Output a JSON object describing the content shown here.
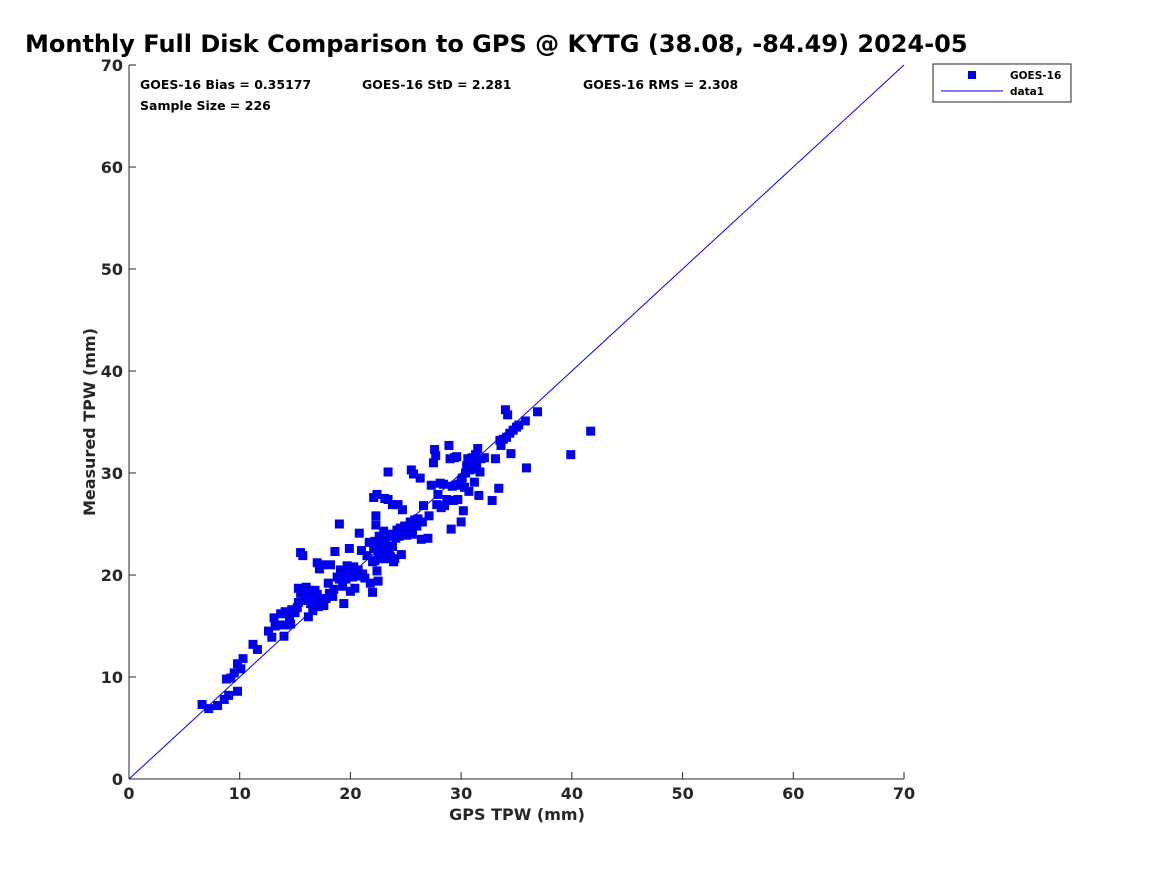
{
  "chart_data": {
    "type": "scatter",
    "title": "Monthly Full Disk Comparison to GPS @ KYTG (38.08, -84.49) 2024-05",
    "xlabel": "GPS TPW (mm)",
    "ylabel": "Measured TPW (mm)",
    "xlim": [
      0,
      70
    ],
    "ylim": [
      0,
      70
    ],
    "xticks": [
      0,
      10,
      20,
      30,
      40,
      50,
      60,
      70
    ],
    "yticks": [
      0,
      10,
      20,
      30,
      40,
      50,
      60,
      70
    ],
    "grid": false,
    "legend_position": "outside-top-right",
    "stats": {
      "bias": "GOES-16 Bias = 0.35177",
      "std": "GOES-16 StD = 2.281",
      "rms": "GOES-16 RMS = 2.308",
      "sample_size": "Sample Size = 226"
    },
    "colors": {
      "points": "#0000ee",
      "line": "#0000ee",
      "axis": "#262626"
    },
    "series": [
      {
        "name": "GOES-16",
        "kind": "scatter",
        "marker": "square",
        "points": [
          [
            6.6,
            7.3
          ],
          [
            7.2,
            6.9
          ],
          [
            8.0,
            7.2
          ],
          [
            8.6,
            7.8
          ],
          [
            9.0,
            8.2
          ],
          [
            9.8,
            8.6
          ],
          [
            8.8,
            9.8
          ],
          [
            9.2,
            9.9
          ],
          [
            9.5,
            10.4
          ],
          [
            9.8,
            11.3
          ],
          [
            10.1,
            10.8
          ],
          [
            10.3,
            11.8
          ],
          [
            11.2,
            13.2
          ],
          [
            11.6,
            12.7
          ],
          [
            12.6,
            14.5
          ],
          [
            12.9,
            13.9
          ],
          [
            13.2,
            15.0
          ],
          [
            13.1,
            15.8
          ],
          [
            13.6,
            15.1
          ],
          [
            13.7,
            16.2
          ],
          [
            14.0,
            14.0
          ],
          [
            14.1,
            16.4
          ],
          [
            14.2,
            15.1
          ],
          [
            14.3,
            16.3
          ],
          [
            14.5,
            15.7
          ],
          [
            14.6,
            15.2
          ],
          [
            14.7,
            16.6
          ],
          [
            15.0,
            16.3
          ],
          [
            15.2,
            16.8
          ],
          [
            15.3,
            17.3
          ],
          [
            15.3,
            18.7
          ],
          [
            15.5,
            18.2
          ],
          [
            15.5,
            22.2
          ],
          [
            15.7,
            21.9
          ],
          [
            15.8,
            18.4
          ],
          [
            15.9,
            17.8
          ],
          [
            16.0,
            18.8
          ],
          [
            16.1,
            17.5
          ],
          [
            16.2,
            15.9
          ],
          [
            16.3,
            18.3
          ],
          [
            16.4,
            17.2
          ],
          [
            16.5,
            18.0
          ],
          [
            16.6,
            16.5
          ],
          [
            16.7,
            17.7
          ],
          [
            16.8,
            18.5
          ],
          [
            16.9,
            17.2
          ],
          [
            17.0,
            21.2
          ],
          [
            17.0,
            18.1
          ],
          [
            17.1,
            16.9
          ],
          [
            17.2,
            20.6
          ],
          [
            17.4,
            21.0
          ],
          [
            17.5,
            17.4
          ],
          [
            17.6,
            17.0
          ],
          [
            17.8,
            17.7
          ],
          [
            18.0,
            19.2
          ],
          [
            18.1,
            18.2
          ],
          [
            18.2,
            21.0
          ],
          [
            18.4,
            17.9
          ],
          [
            18.5,
            18.6
          ],
          [
            18.6,
            22.3
          ],
          [
            18.8,
            19.8
          ],
          [
            19.0,
            25.0
          ],
          [
            19.0,
            19.6
          ],
          [
            19.1,
            20.5
          ],
          [
            19.2,
            20.2
          ],
          [
            19.3,
            18.9
          ],
          [
            19.4,
            17.2
          ],
          [
            19.5,
            20.3
          ],
          [
            19.6,
            19.6
          ],
          [
            19.7,
            20.9
          ],
          [
            19.8,
            19.9
          ],
          [
            19.9,
            22.6
          ],
          [
            20.0,
            18.4
          ],
          [
            20.1,
            20.3
          ],
          [
            20.2,
            19.8
          ],
          [
            20.3,
            20.8
          ],
          [
            20.4,
            18.7
          ],
          [
            20.5,
            20.2
          ],
          [
            20.7,
            20.5
          ],
          [
            20.8,
            24.1
          ],
          [
            20.9,
            19.9
          ],
          [
            21.0,
            22.4
          ],
          [
            21.1,
            20.1
          ],
          [
            21.3,
            19.7
          ],
          [
            21.5,
            21.9
          ],
          [
            21.7,
            23.2
          ],
          [
            21.8,
            19.2
          ],
          [
            22.0,
            18.3
          ],
          [
            22.0,
            21.3
          ],
          [
            22.1,
            27.6
          ],
          [
            22.1,
            22.6
          ],
          [
            22.2,
            23.3
          ],
          [
            22.2,
            21.4
          ],
          [
            22.3,
            25.8
          ],
          [
            22.3,
            24.9
          ],
          [
            22.4,
            27.9
          ],
          [
            22.4,
            20.4
          ],
          [
            22.5,
            19.4
          ],
          [
            22.5,
            22.0
          ],
          [
            22.6,
            23.8
          ],
          [
            22.6,
            21.7
          ],
          [
            22.7,
            23.3
          ],
          [
            22.8,
            22.5
          ],
          [
            22.9,
            21.6
          ],
          [
            23.0,
            24.3
          ],
          [
            23.1,
            27.5
          ],
          [
            23.1,
            22.9
          ],
          [
            23.2,
            23.4
          ],
          [
            23.2,
            21.6
          ],
          [
            23.3,
            22.0
          ],
          [
            23.4,
            27.4
          ],
          [
            23.4,
            30.1
          ],
          [
            23.5,
            22.4
          ],
          [
            23.6,
            23.8
          ],
          [
            23.6,
            21.8
          ],
          [
            23.7,
            24.0
          ],
          [
            23.8,
            26.9
          ],
          [
            23.8,
            22.8
          ],
          [
            23.9,
            21.3
          ],
          [
            24.0,
            21.6
          ],
          [
            24.1,
            23.6
          ],
          [
            24.2,
            24.4
          ],
          [
            24.3,
            26.9
          ],
          [
            24.4,
            23.8
          ],
          [
            24.5,
            24.6
          ],
          [
            24.6,
            22.0
          ],
          [
            24.7,
            26.4
          ],
          [
            24.8,
            24.2
          ],
          [
            24.9,
            24.8
          ],
          [
            25.1,
            23.9
          ],
          [
            25.2,
            24.5
          ],
          [
            25.4,
            25.2
          ],
          [
            25.5,
            30.3
          ],
          [
            25.6,
            24.0
          ],
          [
            25.7,
            29.9
          ],
          [
            25.8,
            25.4
          ],
          [
            26.0,
            24.8
          ],
          [
            26.1,
            25.5
          ],
          [
            26.3,
            29.5
          ],
          [
            26.4,
            23.5
          ],
          [
            26.5,
            25.2
          ],
          [
            26.6,
            26.8
          ],
          [
            27.0,
            23.6
          ],
          [
            27.1,
            25.8
          ],
          [
            27.3,
            28.8
          ],
          [
            27.5,
            31.0
          ],
          [
            27.6,
            32.3
          ],
          [
            27.7,
            31.7
          ],
          [
            27.8,
            26.9
          ],
          [
            27.9,
            27.9
          ],
          [
            28.1,
            29.0
          ],
          [
            28.2,
            26.6
          ],
          [
            28.4,
            28.9
          ],
          [
            28.5,
            26.8
          ],
          [
            28.7,
            27.4
          ],
          [
            28.9,
            32.7
          ],
          [
            29.0,
            31.4
          ],
          [
            29.1,
            24.5
          ],
          [
            29.2,
            28.7
          ],
          [
            29.3,
            27.3
          ],
          [
            29.4,
            31.5
          ],
          [
            29.5,
            28.8
          ],
          [
            29.6,
            31.6
          ],
          [
            29.7,
            27.4
          ],
          [
            29.8,
            28.9
          ],
          [
            30.0,
            25.2
          ],
          [
            30.0,
            29.2
          ],
          [
            30.1,
            29.5
          ],
          [
            30.2,
            26.3
          ],
          [
            30.3,
            28.6
          ],
          [
            30.4,
            30.0
          ],
          [
            30.5,
            30.7
          ],
          [
            30.6,
            31.4
          ],
          [
            30.7,
            28.2
          ],
          [
            30.7,
            31.0
          ],
          [
            30.8,
            30.3
          ],
          [
            30.9,
            30.9
          ],
          [
            31.0,
            31.5
          ],
          [
            31.1,
            30.4
          ],
          [
            31.2,
            29.1
          ],
          [
            31.3,
            31.8
          ],
          [
            31.4,
            30.7
          ],
          [
            31.5,
            32.4
          ],
          [
            31.6,
            27.8
          ],
          [
            31.7,
            30.1
          ],
          [
            31.8,
            31.4
          ],
          [
            32.1,
            31.5
          ],
          [
            32.8,
            27.3
          ],
          [
            33.1,
            31.4
          ],
          [
            33.4,
            28.5
          ],
          [
            33.5,
            33.2
          ],
          [
            33.6,
            32.7
          ],
          [
            33.8,
            33.3
          ],
          [
            34.0,
            36.2
          ],
          [
            34.1,
            33.5
          ],
          [
            34.2,
            35.7
          ],
          [
            34.4,
            33.9
          ],
          [
            34.5,
            31.9
          ],
          [
            34.7,
            34.2
          ],
          [
            35.0,
            34.5
          ],
          [
            35.2,
            34.7
          ],
          [
            35.8,
            35.1
          ],
          [
            35.9,
            30.5
          ],
          [
            36.9,
            36.0
          ],
          [
            39.9,
            31.8
          ],
          [
            41.7,
            34.1
          ]
        ]
      },
      {
        "name": "data1",
        "kind": "line",
        "points": [
          [
            0,
            0
          ],
          [
            70,
            70
          ]
        ]
      }
    ]
  }
}
